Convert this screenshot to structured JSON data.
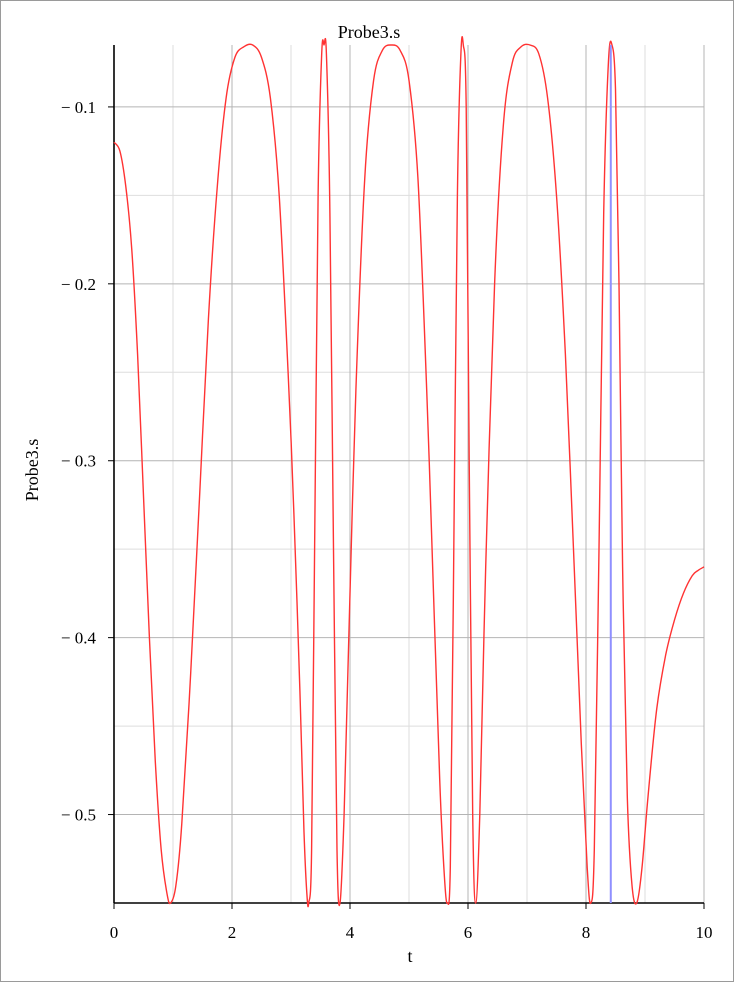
{
  "chart_data": {
    "type": "line",
    "title": "Probe3.s",
    "xlabel": "t",
    "ylabel": "Probe3.s",
    "xlim": [
      0,
      10
    ],
    "ylim": [
      -0.55,
      -0.065
    ],
    "grid": true,
    "legend": "none",
    "x_ticks": [
      {
        "value": 0,
        "label": "0"
      },
      {
        "value": 2,
        "label": "2"
      },
      {
        "value": 4,
        "label": "4"
      },
      {
        "value": 6,
        "label": "6"
      },
      {
        "value": 8,
        "label": "8"
      },
      {
        "value": 10,
        "label": "10"
      }
    ],
    "y_ticks": [
      {
        "value": -0.1,
        "label": "− 0.1"
      },
      {
        "value": -0.2,
        "label": "− 0.2"
      },
      {
        "value": -0.3,
        "label": "− 0.3"
      },
      {
        "value": -0.4,
        "label": "− 0.4"
      },
      {
        "value": -0.5,
        "label": "− 0.5"
      }
    ],
    "x_minor_grid": [
      1,
      3,
      5,
      7,
      9
    ],
    "y_minor_grid": [
      -0.15,
      -0.25,
      -0.35,
      -0.45
    ],
    "cursor_t": 8.42,
    "colors": {
      "series": "#ff3333",
      "cursor": "#8f8fff",
      "grid": "#b4b4b4",
      "minor_grid": "#dedede",
      "axis": "#000000"
    },
    "series": [
      {
        "x": [
          0,
          0.1,
          0.2,
          0.3,
          0.4,
          0.5,
          0.6,
          0.7,
          0.8,
          0.9,
          0.96,
          1.05,
          1.15,
          1.3,
          1.45,
          1.6,
          1.75,
          1.9,
          2.05,
          2.2,
          2.35,
          2.5,
          2.65,
          2.8,
          2.95,
          3.05,
          3.15,
          3.22,
          3.27,
          3.3,
          3.35,
          3.4,
          3.46,
          3.52,
          3.56,
          3.6,
          3.66,
          3.72,
          3.78,
          3.83,
          3.9,
          3.98,
          4.1,
          4.25,
          4.4,
          4.55,
          4.7,
          4.85,
          5.0,
          5.15,
          5.3,
          5.42,
          5.52,
          5.6,
          5.65,
          5.7,
          5.75,
          5.82,
          5.88,
          5.92,
          5.97,
          6.02,
          6.08,
          6.13,
          6.2,
          6.3,
          6.45,
          6.6,
          6.75,
          6.9,
          7.05,
          7.2,
          7.35,
          7.5,
          7.65,
          7.8,
          7.92,
          8.02,
          8.08,
          8.14,
          8.22,
          8.3,
          8.38,
          8.44,
          8.5,
          8.56,
          8.62,
          8.7,
          8.78,
          8.86,
          8.95,
          9.05,
          9.2,
          9.35,
          9.5,
          9.65,
          9.8,
          9.9,
          10
        ],
        "y": [
          -0.12,
          -0.125,
          -0.145,
          -0.18,
          -0.24,
          -0.32,
          -0.4,
          -0.47,
          -0.52,
          -0.545,
          -0.55,
          -0.54,
          -0.505,
          -0.42,
          -0.32,
          -0.22,
          -0.145,
          -0.095,
          -0.072,
          -0.066,
          -0.065,
          -0.072,
          -0.095,
          -0.15,
          -0.25,
          -0.33,
          -0.43,
          -0.51,
          -0.545,
          -0.55,
          -0.52,
          -0.35,
          -0.15,
          -0.07,
          -0.065,
          -0.07,
          -0.16,
          -0.35,
          -0.52,
          -0.55,
          -0.5,
          -0.4,
          -0.26,
          -0.14,
          -0.085,
          -0.068,
          -0.065,
          -0.068,
          -0.085,
          -0.14,
          -0.26,
          -0.38,
          -0.48,
          -0.535,
          -0.55,
          -0.53,
          -0.38,
          -0.15,
          -0.07,
          -0.065,
          -0.1,
          -0.3,
          -0.5,
          -0.55,
          -0.5,
          -0.36,
          -0.2,
          -0.11,
          -0.075,
          -0.066,
          -0.065,
          -0.07,
          -0.095,
          -0.15,
          -0.24,
          -0.36,
          -0.46,
          -0.53,
          -0.55,
          -0.52,
          -0.35,
          -0.16,
          -0.075,
          -0.065,
          -0.09,
          -0.2,
          -0.36,
          -0.49,
          -0.54,
          -0.55,
          -0.53,
          -0.49,
          -0.44,
          -0.41,
          -0.39,
          -0.375,
          -0.365,
          -0.362,
          -0.36
        ]
      }
    ]
  }
}
